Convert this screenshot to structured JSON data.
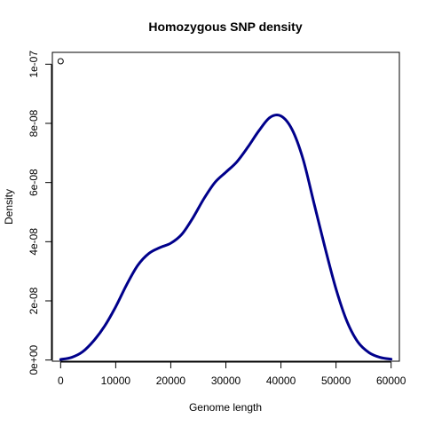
{
  "chart_data": {
    "type": "line",
    "title": "Homozygous SNP density",
    "xlabel": "Genome length",
    "ylabel": "Density",
    "xlim": [
      -1500,
      61500
    ],
    "ylim": [
      -4e-10,
      1.04e-07
    ],
    "xticks": [
      0,
      10000,
      20000,
      30000,
      40000,
      50000,
      60000
    ],
    "xtick_labels": [
      "0",
      "10000",
      "20000",
      "30000",
      "40000",
      "50000",
      "60000"
    ],
    "yticks": [
      0,
      2e-08,
      4e-08,
      6e-08,
      8e-08,
      1e-07
    ],
    "ytick_labels": [
      "0e+00",
      "2e-08",
      "4e-08",
      "6e-08",
      "8e-08",
      "1e-07"
    ],
    "grid": false,
    "series": [
      {
        "color": "#00008B",
        "x": [
          0,
          2000,
          4000,
          6000,
          8000,
          10000,
          12000,
          14000,
          16000,
          18000,
          20000,
          22000,
          24000,
          26000,
          28000,
          30000,
          32000,
          34000,
          36000,
          38000,
          40000,
          42000,
          44000,
          46000,
          48000,
          50000,
          52000,
          54000,
          56000,
          58000,
          60000
        ],
        "y": [
          2e-10,
          9e-10,
          2.8e-09,
          6.5e-09,
          1.15e-08,
          1.8e-08,
          2.55e-08,
          3.2e-08,
          3.6e-08,
          3.8e-08,
          3.95e-08,
          4.25e-08,
          4.8e-08,
          5.45e-08,
          6e-08,
          6.35e-08,
          6.7e-08,
          7.2e-08,
          7.75e-08,
          8.2e-08,
          8.25e-08,
          7.8e-08,
          6.8e-08,
          5.3e-08,
          3.8e-08,
          2.4e-08,
          1.3e-08,
          6e-09,
          2.5e-09,
          9e-10,
          3e-10
        ]
      }
    ],
    "points": [
      {
        "x": 0,
        "y": 1.01e-07,
        "marker": "open-circle"
      }
    ]
  }
}
